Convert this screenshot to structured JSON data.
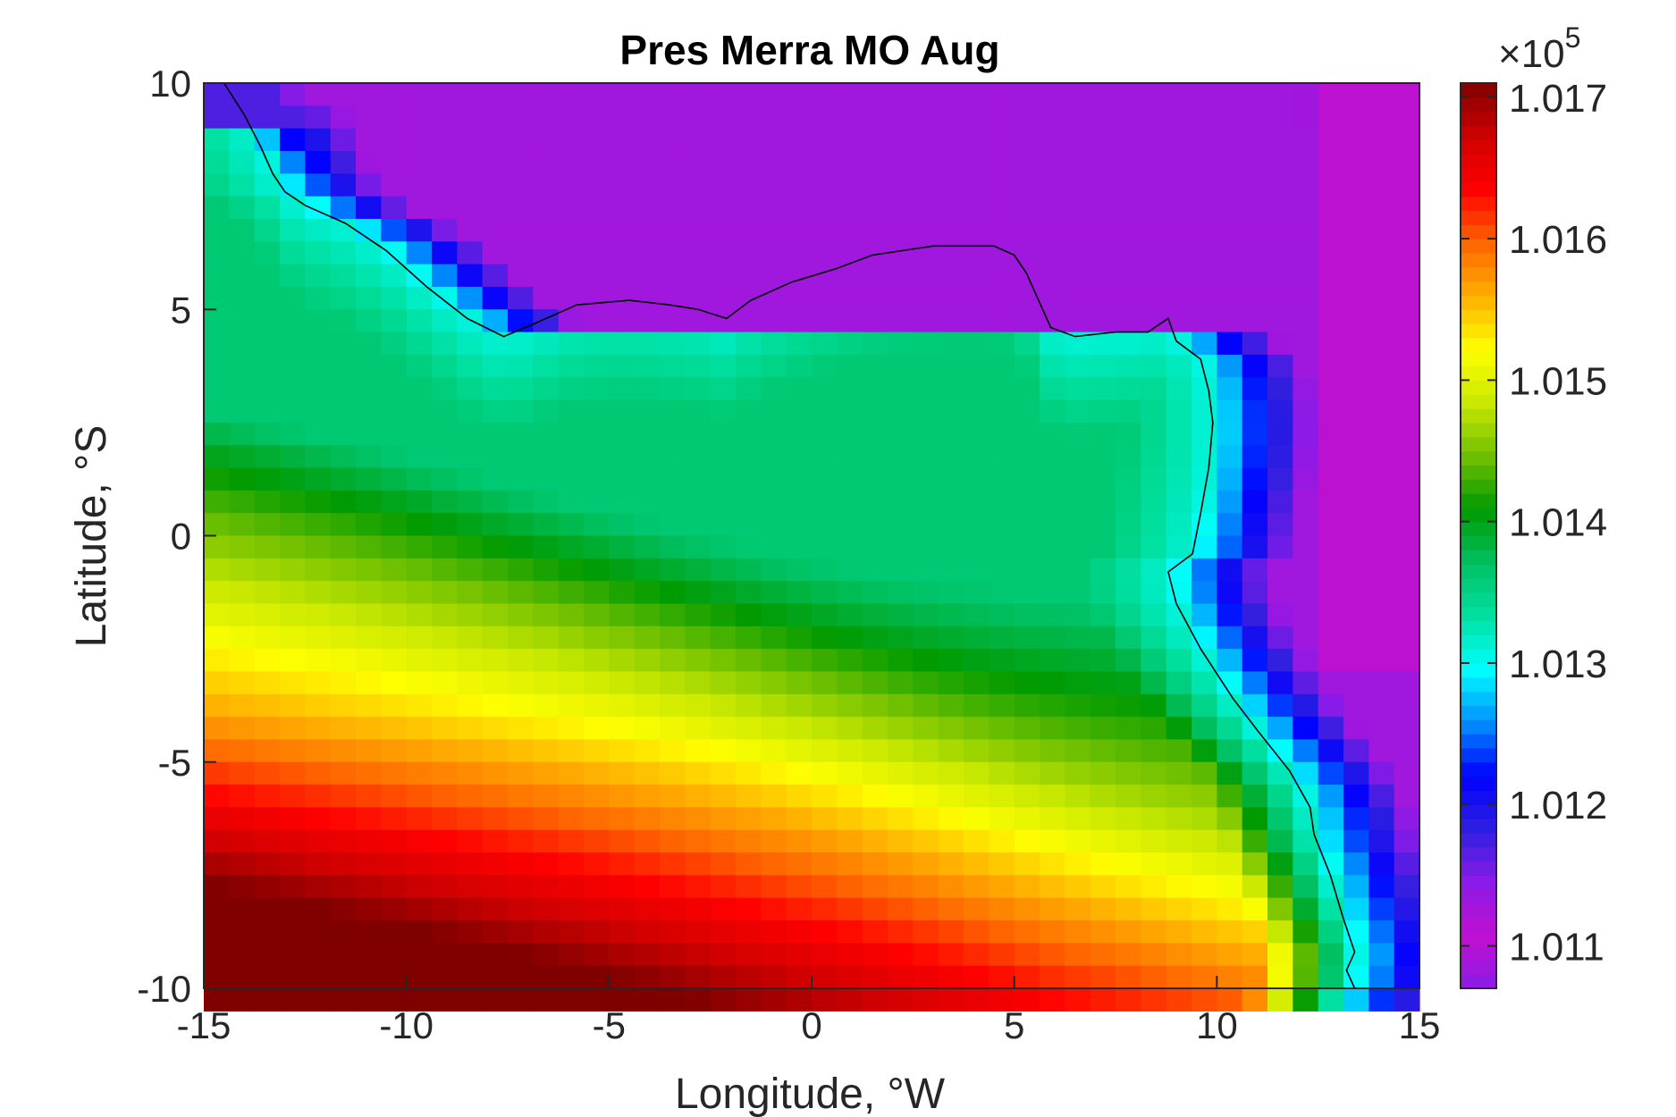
{
  "chart_data": {
    "type": "heatmap",
    "title": "Pres Merra MO Aug",
    "xlabel": "Longitude, °W",
    "ylabel": "Latitude, °S",
    "xlim": [
      -15,
      15
    ],
    "ylim": [
      -10,
      10
    ],
    "x_ticks": [
      "-15",
      "-10",
      "-5",
      "0",
      "5",
      "10",
      "15"
    ],
    "y_ticks": [
      "10",
      "5",
      "0",
      "-5",
      "-10"
    ],
    "grid_resolution_deg": [
      0.625,
      0.5
    ],
    "colorbar": {
      "exponent_label": "×10",
      "exponent_power": "5",
      "min": 1.0107,
      "max": 1.0171,
      "tick_labels": [
        "1.017",
        "1.016",
        "1.015",
        "1.014",
        "1.013",
        "1.012",
        "1.011"
      ],
      "colormap": [
        "#8a1be8",
        "#c010d0",
        "#8a1be8",
        "#2f1fe0",
        "#0000ff",
        "#0090ff",
        "#00ffff",
        "#00e0a0",
        "#00c060",
        "#009a00",
        "#70c000",
        "#c8e800",
        "#ffff00",
        "#ffb000",
        "#ff6600",
        "#ff0000",
        "#d00000",
        "#800000"
      ]
    },
    "field_description_points": {
      "min_region": "east of ~11°E (purple, ~1.0110e5)",
      "max_region": "south-west corner near -15°,-10° (dark red, ~1.0171e5)",
      "coast_band": "cyan ~1.0131e5 along coastline"
    },
    "coastline_color": "#000000"
  }
}
